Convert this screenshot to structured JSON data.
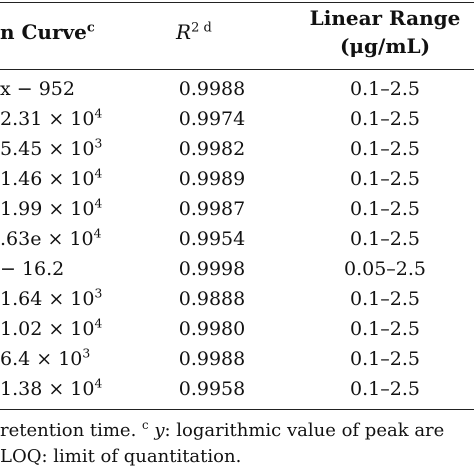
{
  "header": {
    "col1": "n Curve",
    "col1_sup": "c",
    "col2_main": "R",
    "col2_sup": "2 d",
    "col3_line1": "Linear Range",
    "col3_line2": "(μg/mL)"
  },
  "rows": [
    {
      "curve": "x − 952",
      "r2": "0.9988",
      "range": "0.1–2.5"
    },
    {
      "curve": "2.31 × 10",
      "sup": "4",
      "r2": "0.9974",
      "range": "0.1–2.5"
    },
    {
      "curve": "5.45 × 10",
      "sup": "3",
      "r2": "0.9982",
      "range": "0.1–2.5"
    },
    {
      "curve": "1.46 × 10",
      "sup": "4",
      "r2": "0.9989",
      "range": "0.1–2.5"
    },
    {
      "curve": "1.99 × 10",
      "sup": "4",
      "r2": "0.9987",
      "range": "0.1–2.5"
    },
    {
      "curve": ".63e × 10",
      "sup": "4",
      "r2": "0.9954",
      "range": "0.1–2.5"
    },
    {
      "curve": "− 16.2",
      "r2": "0.9998",
      "range": "0.05–2.5"
    },
    {
      "curve": "1.64 × 10",
      "sup": "3",
      "r2": "0.9888",
      "range": "0.1–2.5"
    },
    {
      "curve": "1.02 × 10",
      "sup": "4",
      "r2": "0.9980",
      "range": "0.1–2.5"
    },
    {
      "curve": "6.4 × 10",
      "sup": "3",
      "r2": "0.9988",
      "range": "0.1–2.5"
    },
    {
      "curve": "1.38 × 10",
      "sup": "4",
      "r2": "0.9958",
      "range": "0.1–2.5"
    }
  ],
  "footnote": {
    "line1_pre": "retention time.",
    "line1_sup": "c",
    "line1_var": "y",
    "line1_post": ": logarithmic value of peak are",
    "line2": "LOQ: limit of quantitation."
  }
}
